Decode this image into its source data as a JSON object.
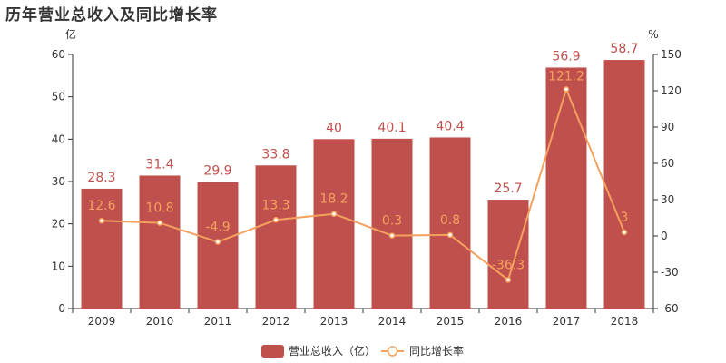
{
  "chart_data": {
    "type": "bar",
    "title": "历年营业总收入及同比增长率",
    "categories": [
      "2009",
      "2010",
      "2011",
      "2012",
      "2013",
      "2014",
      "2015",
      "2016",
      "2017",
      "2018"
    ],
    "series": [
      {
        "name": "营业总收入（亿）",
        "type": "bar",
        "axis": "left",
        "color": "#c0504d",
        "values": [
          28.3,
          31.4,
          29.9,
          33.8,
          40,
          40.1,
          40.4,
          25.7,
          56.9,
          58.7
        ],
        "labels": [
          "28.3",
          "31.4",
          "29.9",
          "33.8",
          "40",
          "40.1",
          "40.4",
          "25.7",
          "56.9",
          "58.7"
        ]
      },
      {
        "name": "同比增长率",
        "type": "line",
        "axis": "right",
        "color": "#f4a15e",
        "values": [
          12.6,
          10.8,
          -4.9,
          13.3,
          18.2,
          0.3,
          0.8,
          -36.3,
          121.2,
          3
        ],
        "labels": [
          "12.6",
          "10.8",
          "-4.9",
          "13.3",
          "18.2",
          "0.3",
          "0.8",
          "-36.3",
          "121.2",
          "3"
        ]
      }
    ],
    "y_left": {
      "unit": "亿",
      "ylim": [
        0,
        60
      ],
      "ticks": [
        0,
        10,
        20,
        30,
        40,
        50,
        60
      ]
    },
    "y_right": {
      "unit": "%",
      "ylim": [
        -60,
        150
      ],
      "ticks": [
        -60,
        -30,
        0,
        30,
        60,
        90,
        120,
        150
      ]
    },
    "grid": false,
    "legend_position": "bottom"
  }
}
